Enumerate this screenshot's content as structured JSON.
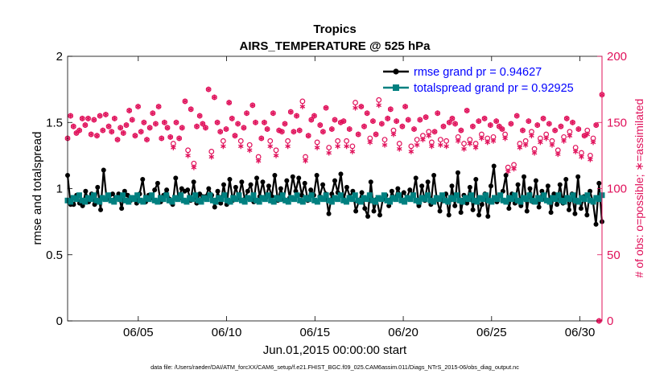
{
  "chart_data": {
    "type": "line",
    "title": "Tropics",
    "subtitle": "AIRS_TEMPERATURE @ 525 hPa",
    "xlabel": "Jun.01,2015 00:00:00 start",
    "ylabel_left": "rmse and totalspread",
    "ylabel_right": "# of obs: o=possible; ∗=assimilated",
    "footer": "data file: /Users/raeder/DAI/ATM_forcXX/CAM6_setup/f.e21.FHIST_BGC.f09_025.CAM6assim.011/Diags_NTrS_2015-06/obs_diag_output.nc",
    "x_range_days": [
      1.0,
      31.25
    ],
    "x_ticks": [
      {
        "day": 5,
        "label": "06/05"
      },
      {
        "day": 10,
        "label": "06/10"
      },
      {
        "day": 15,
        "label": "06/15"
      },
      {
        "day": 20,
        "label": "06/20"
      },
      {
        "day": 25,
        "label": "06/25"
      },
      {
        "day": 30,
        "label": "06/30"
      }
    ],
    "ylim_left": [
      0,
      2
    ],
    "yticks_left": [
      "0",
      "0.5",
      "1",
      "1.5",
      "2"
    ],
    "ylim_right": [
      0,
      200
    ],
    "yticks_right": [
      "0",
      "50",
      "100",
      "150",
      "200"
    ],
    "series": [
      {
        "name": "rmse grand pr = 0.94627",
        "axis": "left",
        "values": [
          1.1,
          0.88,
          0.88,
          0.95,
          0.89,
          0.87,
          0.98,
          0.9,
          0.96,
          0.88,
          1.01,
          0.84,
          1.14,
          0.92,
          0.95,
          0.96,
          0.93,
          0.96,
          0.85,
          0.98,
          0.95,
          0.91,
          0.93,
          0.89,
          0.96,
          1.07,
          0.9,
          0.95,
          0.93,
          0.99,
          1.04,
          0.9,
          0.95,
          0.99,
          0.92,
          0.88,
          1.08,
          0.92,
          1.0,
          0.98,
          0.99,
          0.91,
          1.05,
          0.89,
          0.96,
          0.94,
          0.94,
          1.0,
          0.95,
          0.86,
          0.98,
          0.89,
          1.03,
          0.88,
          1.07,
          0.91,
          1.01,
          0.93,
          1.05,
          0.92,
          0.98,
          1.03,
          0.9,
          1.08,
          0.94,
          1.05,
          0.93,
          1.02,
          0.94,
          1.1,
          0.91,
          1.0,
          0.92,
          1.06,
          0.93,
          1.09,
          0.98,
          1.08,
          0.95,
          1.04,
          0.91,
          0.99,
          0.95,
          1.1,
          0.94,
          1.03,
          0.96,
          0.81,
          0.96,
          1.06,
          0.97,
          1.11,
          0.92,
          1.01,
          0.94,
          0.98,
          0.83,
          0.9,
          0.97,
          0.85,
          0.79,
          1.05,
          0.83,
          0.92,
          0.8,
          0.92,
          0.95,
          0.87,
          0.98,
          0.92,
          1.0,
          0.94,
          0.97,
          0.93,
          0.99,
          0.95,
          1.08,
          0.87,
          1.02,
          0.91,
          1.05,
          0.88,
          1.1,
          0.92,
          0.83,
          0.95,
          0.96,
          0.8,
          1.02,
          0.87,
          1.12,
          0.82,
          0.95,
          0.89,
          1.01,
          0.84,
          1.07,
          0.8,
          0.88,
          0.96,
          0.79,
          1.02,
          1.17,
          0.9,
          0.95,
          0.98,
          1.1,
          0.85,
          0.96,
          0.89,
          1.03,
          0.87,
          1.09,
          0.83,
          1.0,
          0.9,
          1.06,
          0.86,
          0.98,
          0.92,
          1.02,
          0.82,
          0.96,
          0.88,
          1.03,
          0.89,
          1.07,
          0.84,
          0.96,
          0.81,
          1.09,
          0.85,
          0.94,
          0.8,
          0.98,
          0.9,
          0.73,
          1.04,
          0.75
        ]
      },
      {
        "name": "totalspread grand pr = 0.92925",
        "axis": "left",
        "values": [
          0.91,
          0.9,
          0.93,
          0.92,
          0.95,
          0.91,
          0.9,
          0.93,
          0.92,
          0.95,
          0.91,
          0.9,
          0.93,
          0.92,
          0.95,
          0.91,
          0.9,
          0.93,
          0.92,
          0.95,
          0.91,
          0.9,
          0.93,
          0.92,
          0.95,
          0.91,
          0.9,
          0.93,
          0.92,
          0.95,
          0.91,
          0.9,
          0.93,
          0.92,
          0.95,
          0.91,
          0.9,
          0.93,
          0.92,
          0.95,
          0.91,
          0.9,
          0.93,
          0.92,
          0.95,
          0.91,
          0.9,
          0.93,
          0.92,
          0.95,
          0.91,
          0.9,
          0.93,
          0.92,
          0.95,
          0.91,
          0.9,
          0.93,
          0.92,
          0.95,
          0.91,
          0.9,
          0.93,
          0.92,
          0.95,
          0.91,
          0.9,
          0.93,
          0.92,
          0.95,
          0.91,
          0.9,
          0.93,
          0.92,
          0.95,
          0.91,
          0.9,
          0.93,
          0.92,
          0.95,
          0.91,
          0.9,
          0.93,
          0.92,
          0.95,
          0.91,
          0.9,
          0.93,
          0.92,
          0.95,
          0.91,
          0.9,
          0.93,
          0.92,
          0.95,
          0.91,
          0.9,
          0.93,
          0.92,
          0.95,
          0.91,
          0.9,
          0.93,
          0.92,
          0.95,
          0.91,
          0.9,
          0.93,
          0.92,
          0.95,
          0.91,
          0.9,
          0.93,
          0.92,
          0.95,
          0.91,
          0.9,
          0.93,
          0.92,
          0.95,
          0.91,
          0.9,
          0.93,
          0.92,
          0.95,
          0.91,
          0.9,
          0.93,
          0.92,
          0.95,
          0.91,
          0.9,
          0.93,
          0.92,
          0.95,
          0.91,
          0.9,
          0.93,
          0.92,
          0.95,
          0.91,
          0.9,
          0.93,
          0.92,
          0.95,
          0.91,
          0.9,
          0.93,
          0.92,
          0.95,
          0.91,
          0.9,
          0.93,
          0.92,
          0.95,
          0.91,
          0.9,
          0.93,
          0.92,
          0.95,
          0.91,
          0.9,
          0.93,
          0.92,
          0.95,
          0.91,
          0.9,
          0.93,
          0.92,
          0.95,
          0.91,
          0.9,
          0.93,
          0.92,
          0.95,
          0.91,
          0.9,
          0.93,
          0.92,
          0.95,
          0.91,
          0.9,
          0.93,
          0.92,
          0.95
        ]
      },
      {
        "name": "obs possible",
        "axis": "right",
        "marker": "o",
        "values": [
          138,
          155,
          147,
          142,
          144,
          153,
          148,
          153,
          141,
          152,
          140,
          155,
          144,
          156,
          147,
          143,
          153,
          137,
          146,
          142,
          148,
          159,
          152,
          140,
          162,
          143,
          150,
          137,
          146,
          157,
          149,
          162,
          138,
          150,
          146,
          139,
          134,
          150,
          138,
          146,
          166,
          129,
          160,
          119,
          147,
          155,
          149,
          146,
          175,
          128,
          169,
          150,
          143,
          136,
          145,
          165,
          153,
          140,
          149,
          136,
          146,
          157,
          133,
          163,
          150,
          124,
          138,
          150,
          145,
          136,
          157,
          129,
          144,
          143,
          149,
          136,
          158,
          143,
          155,
          144,
          166,
          124,
          140,
          152,
          155,
          135,
          148,
          143,
          161,
          131,
          145,
          152,
          136,
          150,
          151,
          136,
          145,
          132,
          165,
          141,
          162,
          147,
          157,
          138,
          151,
          141,
          167,
          149,
          137,
          153,
          160,
          144,
          151,
          134,
          147,
          162,
          152,
          132,
          145,
          137,
          152,
          140,
          154,
          143,
          135,
          143,
          157,
          137,
          147,
          136,
          150,
          153,
          149,
          139,
          144,
          134,
          159,
          137,
          147,
          134,
          151,
          141,
          153,
          138,
          148,
          139,
          151,
          147,
          145,
          141,
          116,
          149,
          118,
          155,
          134,
          144,
          136,
          151,
          143,
          130,
          148,
          138,
          153,
          141,
          149,
          136,
          144,
          129,
          147,
          139,
          153,
          143,
          150,
          131,
          145,
          127,
          140,
          144,
          125,
          138,
          148,
          0,
          171
        ]
      },
      {
        "name": "obs assimilated",
        "axis": "right",
        "marker": "*",
        "values": [
          138,
          155,
          147,
          142,
          144,
          153,
          148,
          153,
          141,
          152,
          140,
          155,
          144,
          156,
          147,
          143,
          153,
          137,
          146,
          142,
          148,
          159,
          152,
          140,
          162,
          143,
          150,
          137,
          146,
          157,
          149,
          162,
          138,
          150,
          146,
          139,
          131,
          150,
          138,
          146,
          166,
          125,
          160,
          116,
          147,
          155,
          149,
          146,
          175,
          124,
          169,
          150,
          143,
          132,
          145,
          165,
          153,
          140,
          149,
          132,
          146,
          157,
          129,
          163,
          150,
          121,
          138,
          150,
          145,
          132,
          157,
          125,
          144,
          143,
          149,
          132,
          158,
          143,
          155,
          144,
          162,
          121,
          140,
          152,
          155,
          131,
          148,
          143,
          161,
          127,
          145,
          152,
          132,
          150,
          151,
          132,
          145,
          128,
          161,
          141,
          162,
          147,
          157,
          135,
          151,
          141,
          163,
          149,
          133,
          153,
          160,
          141,
          151,
          130,
          147,
          162,
          152,
          128,
          145,
          133,
          152,
          137,
          154,
          140,
          132,
          143,
          157,
          133,
          147,
          132,
          150,
          153,
          149,
          136,
          144,
          130,
          159,
          134,
          147,
          131,
          151,
          138,
          153,
          135,
          148,
          136,
          151,
          147,
          145,
          138,
          113,
          149,
          115,
          155,
          131,
          144,
          133,
          151,
          140,
          127,
          148,
          135,
          153,
          138,
          149,
          133,
          144,
          126,
          147,
          136,
          153,
          140,
          150,
          128,
          145,
          124,
          140,
          141,
          122,
          135,
          148,
          0,
          171
        ]
      }
    ],
    "legend": {
      "location": "top-right",
      "entries": [
        "rmse grand pr = 0.94627",
        "totalspread grand pr = 0.92925"
      ]
    },
    "colors": {
      "rmse": "#000000",
      "spread": "#008080",
      "obs": "#e0105a",
      "legend_text": "#0000ff",
      "axes": "#000000"
    }
  }
}
